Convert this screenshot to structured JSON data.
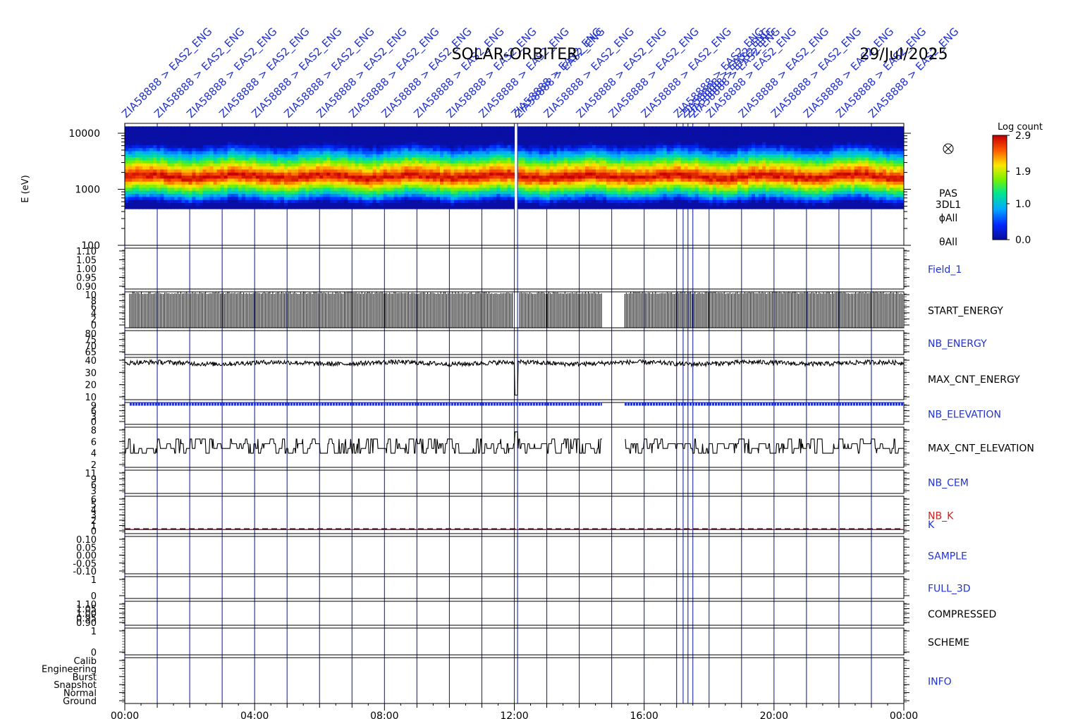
{
  "header": {
    "title": "SOLAR-ORBITER",
    "date": "29/Jul/2025"
  },
  "chart_data": {
    "type": "multi-panel-timeseries",
    "time_axis": {
      "ticks": [
        "00:00",
        "04:00",
        "08:00",
        "12:00",
        "16:00",
        "20:00",
        "00:00"
      ],
      "range_hours": [
        0,
        24
      ]
    },
    "event_markers": {
      "label": "ZIA58888 > EAS2_ENG",
      "times_hours": [
        0,
        1,
        2,
        3,
        4,
        5,
        6,
        7,
        8,
        9,
        10,
        11,
        12,
        12.1,
        13,
        14,
        15,
        16,
        17,
        17.2,
        17.35,
        17.5,
        18,
        19,
        20,
        21,
        22,
        23
      ]
    },
    "spectrogram": {
      "ylabel": "E (eV)",
      "yscale": "log",
      "yticks": [
        "10000",
        "1000",
        "100"
      ],
      "ylim": [
        100,
        15000
      ],
      "right_labels": [
        "PAS",
        "3DL1",
        "ϕAll",
        "θAll"
      ],
      "colorbar": {
        "label": "Log count",
        "ticks": [
          "2.9",
          "1.9",
          "1.0",
          "0.0"
        ],
        "range": [
          0.0,
          2.9
        ]
      },
      "data": {
        "band_peak_eV": 1700,
        "band_upper_eV": 7000,
        "band_lower_eV": 500,
        "gap_hours": [
          11.95,
          12.15
        ]
      }
    },
    "panels": [
      {
        "name": "Field_1",
        "label_color": "#2233cc",
        "yticks": [
          "1.10",
          "1.05",
          "1.00",
          "0.95",
          "0.90"
        ],
        "series": "none"
      },
      {
        "name": "START_ENERGY",
        "label_color": "#000000",
        "yticks": [
          "10",
          "8",
          "6",
          "4",
          "2",
          "0"
        ],
        "series": "bursts",
        "value_range": [
          0,
          10
        ],
        "gaps_hours": [
          [
            14.7,
            15.4
          ]
        ]
      },
      {
        "name": "NB_ENERGY",
        "label_color": "#2233cc",
        "yticks": [
          "80",
          "75",
          "70",
          "65"
        ],
        "series": "none"
      },
      {
        "name": "MAX_CNT_ENERGY",
        "label_color": "#000000",
        "yticks": [
          "40",
          "30",
          "20",
          "10"
        ],
        "series": "noisy",
        "mean": 40,
        "noise": 2,
        "value_range": [
          8,
          45
        ]
      },
      {
        "name": "NB_ELEVATION",
        "label_color": "#2233cc",
        "yticks": [
          "9",
          "6",
          "3",
          "0"
        ],
        "series": "constant",
        "value": 8.9,
        "value_range": [
          0,
          9.5
        ],
        "gaps_hours": [
          [
            14.7,
            15.4
          ]
        ],
        "color": "#2233cc"
      },
      {
        "name": "MAX_CNT_ELEVATION",
        "label_color": "#000000",
        "yticks": [
          "8",
          "6",
          "4",
          "2"
        ],
        "series": "step",
        "mean": 4.3,
        "noise": 1.2,
        "value_range": [
          0,
          8.5
        ]
      },
      {
        "name": "NB_CEM",
        "label_color": "#2233cc",
        "yticks": [
          "11",
          "9",
          "6",
          "3"
        ],
        "series": "none"
      },
      {
        "name": "NB_K",
        "label_color": "#cc2222",
        "second_label": "K",
        "second_label_color": "#2233cc",
        "yticks": [
          "6",
          "5",
          "4",
          "3",
          "2",
          "1",
          "0"
        ],
        "series": "flat",
        "value": 0.7,
        "value_range": [
          0,
          6.5
        ],
        "color": "#882244"
      },
      {
        "name": "SAMPLE",
        "label_color": "#2233cc",
        "yticks": [
          "0.10",
          "0.05",
          "0.00",
          "-0.05",
          "-0.10"
        ],
        "series": "none"
      },
      {
        "name": "FULL_3D",
        "label_color": "#2233cc",
        "yticks": [
          "1",
          "0"
        ],
        "series": "none"
      },
      {
        "name": "COMPRESSED",
        "label_color": "#000000",
        "yticks": [
          "1.10",
          "1.05",
          "1.00",
          "0.95",
          "0.90"
        ],
        "series": "none"
      },
      {
        "name": "SCHEME",
        "label_color": "#000000",
        "yticks": [
          "1",
          "0"
        ],
        "series": "none"
      },
      {
        "name": "INFO",
        "label_color": "#2233cc",
        "yticks": [
          "Calib",
          "Engineering",
          "Burst",
          "Snapshot",
          "Normal",
          "Ground"
        ],
        "series": "none"
      }
    ]
  }
}
